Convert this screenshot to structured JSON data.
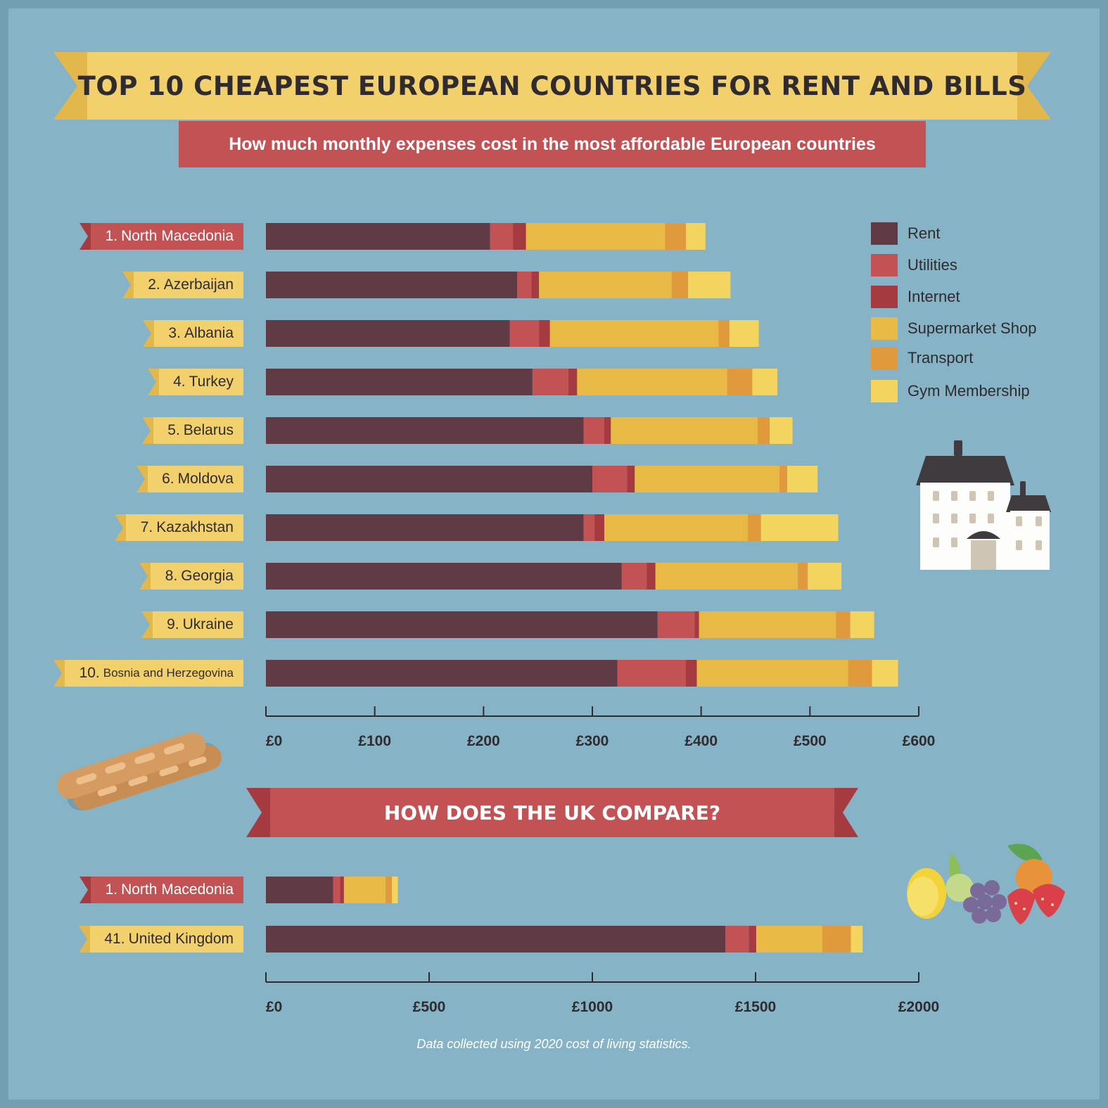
{
  "title": "TOP 10 CHEAPEST EUROPEAN COUNTRIES FOR RENT AND BILLS",
  "subtitle": "How much monthly expenses cost in the most affordable European countries",
  "compare_heading": "HOW DOES THE UK COMPARE?",
  "footnote": "Data collected using 2020 cost of living statistics.",
  "colors": {
    "Rent": "#603a45",
    "Utilities": "#c25254",
    "Internet": "#a63a41",
    "Supermarket Shop": "#e9b946",
    "Transport": "#e19a3b",
    "Gym Membership": "#f2d45e"
  },
  "legend": [
    "Rent",
    "Utilities",
    "Internet",
    "Supermarket Shop",
    "Transport",
    "Gym Membership"
  ],
  "decorations": [
    "baguette-icon",
    "house-icon",
    "fruit-icon"
  ],
  "chart_data": [
    {
      "type": "bar",
      "stacked": true,
      "orientation": "horizontal",
      "categories": [
        {
          "rank": "1.",
          "name": "North Macedonia",
          "highlight": true
        },
        {
          "rank": "2.",
          "name": "Azerbaijan",
          "highlight": false
        },
        {
          "rank": "3.",
          "name": "Albania",
          "highlight": false
        },
        {
          "rank": "4.",
          "name": "Turkey",
          "highlight": false
        },
        {
          "rank": "5.",
          "name": "Belarus",
          "highlight": false
        },
        {
          "rank": "6.",
          "name": "Moldova",
          "highlight": false
        },
        {
          "rank": "7.",
          "name": "Kazakhstan",
          "highlight": false
        },
        {
          "rank": "8.",
          "name": "Georgia",
          "highlight": false
        },
        {
          "rank": "9.",
          "name": "Ukraine",
          "highlight": false
        },
        {
          "rank": "10.",
          "name": "Bosnia and Herzegovina",
          "highlight": false
        }
      ],
      "series": [
        {
          "name": "Rent",
          "values": [
            206,
            231,
            224,
            245,
            292,
            300,
            292,
            327,
            360,
            323
          ]
        },
        {
          "name": "Utilities",
          "values": [
            21,
            13,
            27,
            33,
            19,
            32,
            10,
            23,
            34,
            63
          ]
        },
        {
          "name": "Internet",
          "values": [
            12,
            7,
            10,
            8,
            6,
            7,
            9,
            8,
            4,
            10
          ]
        },
        {
          "name": "Supermarket Shop",
          "values": [
            128,
            122,
            155,
            138,
            135,
            133,
            132,
            131,
            126,
            139
          ]
        },
        {
          "name": "Transport",
          "values": [
            19,
            15,
            10,
            23,
            11,
            7,
            12,
            9,
            13,
            22
          ]
        },
        {
          "name": "Gym Membership",
          "values": [
            18,
            39,
            27,
            23,
            21,
            28,
            71,
            31,
            22,
            24
          ]
        }
      ],
      "xlim": [
        0,
        600
      ],
      "ticks": [
        0,
        100,
        200,
        300,
        400,
        500,
        600
      ],
      "tick_labels": [
        "£0",
        "£100",
        "£200",
        "£300",
        "£400",
        "£500",
        "£600"
      ]
    },
    {
      "type": "bar",
      "stacked": true,
      "orientation": "horizontal",
      "categories": [
        {
          "rank": "1.",
          "name": "North Macedonia",
          "highlight": true
        },
        {
          "rank": "41.",
          "name": "United Kingdom",
          "highlight": false
        }
      ],
      "series": [
        {
          "name": "Rent",
          "values": [
            206,
            1408
          ]
        },
        {
          "name": "Utilities",
          "values": [
            21,
            71
          ]
        },
        {
          "name": "Internet",
          "values": [
            12,
            23
          ]
        },
        {
          "name": "Supermarket Shop",
          "values": [
            128,
            203
          ]
        },
        {
          "name": "Transport",
          "values": [
            19,
            87
          ]
        },
        {
          "name": "Gym Membership",
          "values": [
            18,
            36
          ]
        }
      ],
      "xlim": [
        0,
        2000
      ],
      "ticks": [
        0,
        500,
        1000,
        1500,
        2000
      ],
      "tick_labels": [
        "£0",
        "£500",
        "£1000",
        "£1500",
        "£2000"
      ]
    }
  ]
}
